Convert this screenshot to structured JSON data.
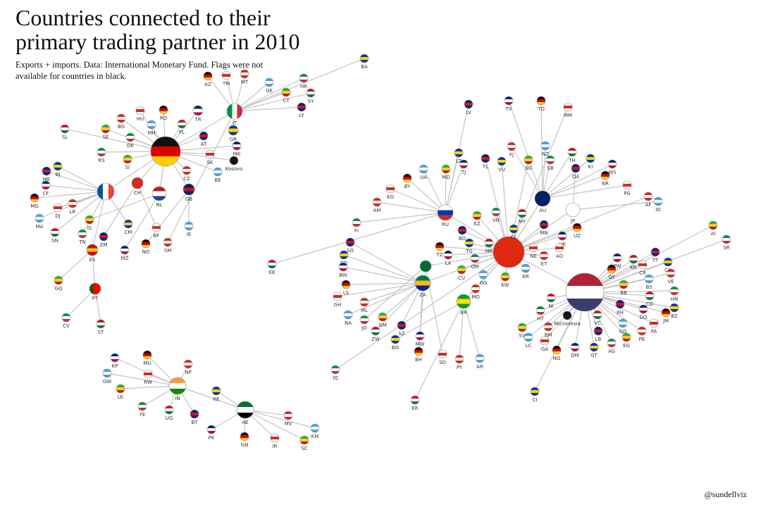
{
  "header": {
    "title_lines": [
      "Countries connected to their",
      "primary trading partner in 2010"
    ],
    "subtitle_lines": [
      "Exports + imports. Data: International Monetary Fund. Flags were not",
      "available for countries in black."
    ]
  },
  "nodes": [
    null,
    null,
    "CH",
    "NL",
    "GB",
    "IT",
    "ES",
    "PT",
    "RU",
    null,
    null,
    "JP",
    "AU",
    "ZA",
    null,
    "BR",
    "IN",
    "AE",
    "AZ",
    "TM",
    "MT",
    "GE",
    "CY",
    "HR",
    "SY",
    "LY",
    "BA",
    "TR",
    "RO",
    "HU",
    "BG",
    "MH",
    "SE",
    "DK",
    "PL",
    "AT",
    "GR",
    "MK",
    "Kosovo",
    "SK",
    "CZ",
    "BE",
    "SI",
    "RS",
    "SL",
    "ME",
    "BJ",
    "CF",
    "MG",
    "DJ",
    "LR",
    "MA",
    "IS",
    "TN",
    "SN",
    "ZM",
    "CM",
    "MZ",
    "NO",
    "BF",
    "SM",
    "IE",
    "GQ",
    "CV",
    "ST",
    "LV",
    "LT",
    "TJ",
    "BY",
    "KG",
    "AM",
    "UA",
    "MD",
    "FI",
    "EE",
    "TL",
    "VU",
    "TV",
    "TO",
    "MM",
    "FJ",
    "NZ",
    "SG",
    "SB",
    "TH",
    "QA",
    "KI",
    "WS",
    "NR",
    "PG",
    "AF",
    "ID",
    "KZ",
    "VN",
    "MY",
    "MN",
    "CL",
    "HK",
    "UZ",
    "AO",
    "ET",
    "KR",
    "KW",
    "OM",
    "MR",
    "BD",
    "TG",
    "LA",
    "TZ",
    "NE",
    "MO",
    "GG",
    "CU",
    "IQ",
    "ER",
    "SO",
    "CD",
    "BW",
    "LS",
    "GH",
    "ML",
    "NA",
    "GM",
    "JO",
    "ZW",
    "SZ",
    "BO",
    "MW",
    "BH",
    "SD",
    "PY",
    "AR",
    "AI",
    "SR",
    "KN",
    "TT",
    "CA",
    "PW",
    "GY",
    "CR",
    "VE",
    "BS",
    "BB",
    "HN",
    "CO",
    "KH",
    "BZ",
    "DO",
    "JM",
    "PA",
    "PE",
    "GD",
    "EG",
    "AG",
    "VC",
    "LB",
    "GT",
    "DM",
    "NG",
    "GA",
    "BM",
    "LC",
    "SV",
    "HT",
    "NI",
    "Micronesia",
    "CI",
    "KP",
    "MU",
    "RW",
    "NP",
    "GW",
    "LK",
    "YE",
    "UG",
    "BT",
    "KE",
    "PK",
    "GN",
    "IR",
    "MV",
    "KM",
    "SC"
  ],
  "credit": "@sundellviz"
}
